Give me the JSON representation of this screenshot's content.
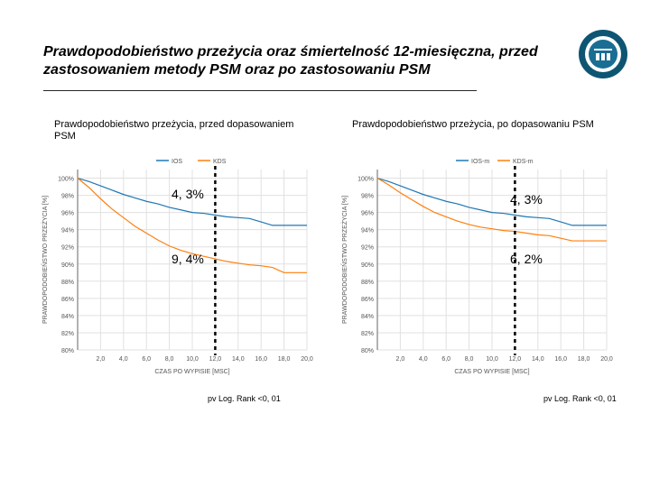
{
  "title": "Prawdopodobieństwo przeżycia oraz śmiertelność 12-miesięczna, przed zastosowaniem metody PSM oraz po zastosowaniu PSM",
  "logo": {
    "outer_fill": "#0d5573",
    "ring_fill": "#ffffff",
    "inner_fill": "#1a6e93"
  },
  "left_label": "Prawdopodobieństwo przeżycia, przed dopasowaniem PSM",
  "right_label": "Prawdopodobieństwo przeżycia, po dopasowaniu PSM",
  "left_annot_top": "4, 3%",
  "left_annot_mid": "9, 4%",
  "right_annot_top": "4, 3%",
  "right_annot_mid": "6, 2%",
  "footnote_left": "pv Log. Rank <0, 01",
  "footnote_right": "pv Log. Rank <0, 01",
  "chart1": {
    "type": "line",
    "background_color": "#ffffff",
    "grid_color": "#e0e0e0",
    "axis_color": "#666666",
    "label_color": "#555555",
    "label_fontsize": 7,
    "ylabel": "PRAWDOPODOBIEŃSTWO PRZEŻYCIA [%]",
    "xlabel": "CZAS PO WYPISIE [MSC]",
    "legend_items": [
      "IOS",
      "KDS"
    ],
    "legend_colors": [
      "#1f77b4",
      "#ff7f0e"
    ],
    "x_ticks": [
      2,
      4,
      6,
      8,
      10,
      12,
      14,
      16,
      18,
      20
    ],
    "x_tick_labels": [
      "2,0",
      "4,0",
      "6,0",
      "8,0",
      "10,0",
      "12,0",
      "14,0",
      "16,0",
      "18,0",
      "20,0"
    ],
    "y_ticks": [
      80,
      82,
      84,
      86,
      88,
      90,
      92,
      94,
      96,
      98,
      100
    ],
    "y_tick_labels": [
      "80%",
      "82%",
      "84%",
      "86%",
      "88%",
      "90%",
      "92%",
      "94%",
      "96%",
      "98%",
      "100%"
    ],
    "xlim": [
      0,
      20
    ],
    "ylim": [
      80,
      101
    ],
    "marker_x": 12,
    "series": [
      {
        "name": "IOS",
        "color": "#1f77b4",
        "width": 1.2,
        "x": [
          0,
          1,
          2,
          3,
          4,
          5,
          6,
          7,
          8,
          9,
          10,
          11,
          12,
          13,
          14,
          15,
          16,
          17,
          18,
          19,
          20
        ],
        "y": [
          100,
          99.6,
          99.1,
          98.6,
          98.1,
          97.7,
          97.3,
          97.0,
          96.6,
          96.3,
          96.0,
          95.9,
          95.7,
          95.5,
          95.4,
          95.3,
          94.9,
          94.5,
          94.5,
          94.5,
          94.5
        ]
      },
      {
        "name": "KDS",
        "color": "#ff7f0e",
        "width": 1.2,
        "x": [
          0,
          1,
          2,
          3,
          4,
          5,
          6,
          7,
          8,
          9,
          10,
          11,
          12,
          13,
          14,
          15,
          16,
          17,
          18,
          19,
          20
        ],
        "y": [
          100,
          98.9,
          97.6,
          96.4,
          95.4,
          94.4,
          93.6,
          92.8,
          92.1,
          91.6,
          91.2,
          90.9,
          90.6,
          90.3,
          90.1,
          89.9,
          89.8,
          89.6,
          89.0,
          89.0,
          89.0
        ]
      }
    ]
  },
  "chart2": {
    "type": "line",
    "background_color": "#ffffff",
    "grid_color": "#e0e0e0",
    "axis_color": "#666666",
    "label_color": "#555555",
    "label_fontsize": 7,
    "ylabel": "PRAWDOPODOBIEŃSTWO PRZEŻYCIA [%]",
    "xlabel": "CZAS PO WYPISIE [MSC]",
    "legend_items": [
      "IOS-m",
      "KDS-m"
    ],
    "legend_colors": [
      "#1f77b4",
      "#ff7f0e"
    ],
    "x_ticks": [
      2,
      4,
      6,
      8,
      10,
      12,
      14,
      16,
      18,
      20
    ],
    "x_tick_labels": [
      "2,0",
      "4,0",
      "6,0",
      "8,0",
      "10,0",
      "12,0",
      "14,0",
      "16,0",
      "18,0",
      "20,0"
    ],
    "y_ticks": [
      80,
      82,
      84,
      86,
      88,
      90,
      92,
      94,
      96,
      98,
      100
    ],
    "y_tick_labels": [
      "80%",
      "82%",
      "84%",
      "86%",
      "88%",
      "90%",
      "92%",
      "94%",
      "96%",
      "98%",
      "100%"
    ],
    "xlim": [
      0,
      20
    ],
    "ylim": [
      80,
      101
    ],
    "marker_x": 12,
    "series": [
      {
        "name": "IOS-m",
        "color": "#1f77b4",
        "width": 1.2,
        "x": [
          0,
          1,
          2,
          3,
          4,
          5,
          6,
          7,
          8,
          9,
          10,
          11,
          12,
          13,
          14,
          15,
          16,
          17,
          18,
          19,
          20
        ],
        "y": [
          100,
          99.6,
          99.1,
          98.6,
          98.1,
          97.7,
          97.3,
          97.0,
          96.6,
          96.3,
          96.0,
          95.9,
          95.7,
          95.5,
          95.4,
          95.3,
          94.9,
          94.5,
          94.5,
          94.5,
          94.5
        ]
      },
      {
        "name": "KDS-m",
        "color": "#ff7f0e",
        "width": 1.2,
        "x": [
          0,
          1,
          2,
          3,
          4,
          5,
          6,
          7,
          8,
          9,
          10,
          11,
          12,
          13,
          14,
          15,
          16,
          17,
          18,
          19,
          20
        ],
        "y": [
          100,
          99.2,
          98.3,
          97.5,
          96.7,
          96.0,
          95.5,
          95.0,
          94.6,
          94.3,
          94.1,
          93.9,
          93.8,
          93.6,
          93.4,
          93.3,
          93.0,
          92.7,
          92.7,
          92.7,
          92.7
        ]
      }
    ]
  }
}
